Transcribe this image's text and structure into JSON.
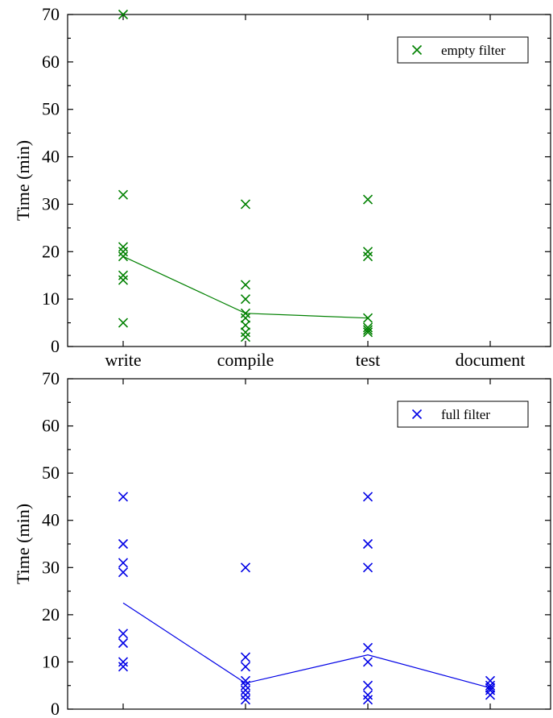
{
  "chart_data": [
    {
      "type": "scatter",
      "title": "",
      "xlabel": "",
      "ylabel": "Time (min)",
      "ylim": [
        0,
        70
      ],
      "yticks": [
        "0",
        "10",
        "20",
        "30",
        "40",
        "50",
        "60",
        "70"
      ],
      "categories": [
        "write",
        "compile",
        "test",
        "document"
      ],
      "show_category_labels": true,
      "grid": false,
      "legend_position": "top-right",
      "series": [
        {
          "name": "empty filter",
          "color": "#008000",
          "marker": "x",
          "points": {
            "write": [
              70,
              32,
              21,
              20,
              19,
              15,
              14,
              5
            ],
            "compile": [
              30,
              13,
              10,
              7,
              6,
              4.5,
              3,
              2
            ],
            "test": [
              31,
              20,
              19,
              6,
              4,
              3.5,
              3
            ],
            "document": []
          },
          "trend": [
            19,
            7,
            6,
            null
          ]
        }
      ]
    },
    {
      "type": "scatter",
      "title": "",
      "xlabel": "",
      "ylabel": "Time (min)",
      "ylim": [
        0,
        70
      ],
      "yticks": [
        "0",
        "10",
        "20",
        "30",
        "40",
        "50",
        "60",
        "70"
      ],
      "categories": [
        "write",
        "compile",
        "test",
        "document"
      ],
      "show_category_labels": false,
      "grid": false,
      "legend_position": "top-right",
      "series": [
        {
          "name": "full filter",
          "color": "#0000e6",
          "marker": "x",
          "points": {
            "write": [
              45,
              35,
              31,
              29,
              16,
              14,
              10,
              9
            ],
            "compile": [
              30,
              11,
              9,
              6,
              5,
              4,
              3,
              2
            ],
            "test": [
              45,
              35,
              30,
              13,
              10,
              5,
              3,
              2
            ],
            "document": [
              6,
              5,
              4.5,
              4,
              3
            ]
          },
          "trend": [
            22.5,
            5.5,
            11.5,
            4.5
          ]
        }
      ]
    }
  ]
}
